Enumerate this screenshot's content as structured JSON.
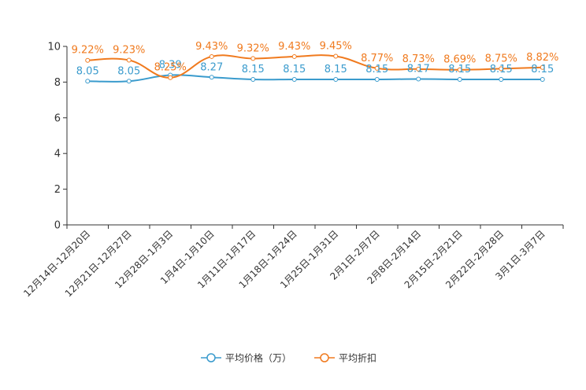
{
  "chart_data": {
    "type": "line",
    "title": "",
    "xlabel": "",
    "ylabel": "",
    "ylim": [
      0,
      10
    ],
    "yticks": [
      0,
      2,
      4,
      6,
      8,
      10
    ],
    "ytick_labels": [
      "0",
      "2",
      "4",
      "6",
      "8",
      "10"
    ],
    "grid": false,
    "legend_position": "bottom-center",
    "categories": [
      "12月14日-12月20日",
      "12月21日-12月27日",
      "12月28日-1月3日",
      "1月4日-1月10日",
      "1月11日-1月17日",
      "1月18日-1月24日",
      "1月25日-1月31日",
      "2月1日-2月7日",
      "2月8日-2月14日",
      "2月15日-2月21日",
      "2月22日-2月28日",
      "3月1日-3月7日"
    ],
    "series": [
      {
        "name": "平均价格（万）",
        "color": "#3a9bcd",
        "values": [
          8.05,
          8.05,
          8.39,
          8.27,
          8.15,
          8.15,
          8.15,
          8.15,
          8.17,
          8.15,
          8.15,
          8.15
        ],
        "labels": [
          "8.05",
          "8.05",
          "8.39",
          "8.27",
          "8.15",
          "8.15",
          "8.15",
          "8.15",
          "8.17",
          "8.15",
          "8.15",
          "8.15"
        ]
      },
      {
        "name": "平均折扣",
        "color": "#f07a1e",
        "values": [
          9.22,
          9.23,
          8.25,
          9.43,
          9.32,
          9.43,
          9.45,
          8.77,
          8.73,
          8.69,
          8.75,
          8.82
        ],
        "labels": [
          "9.22%",
          "9.23%",
          "8.25%",
          "9.43%",
          "9.32%",
          "9.43%",
          "9.45%",
          "8.77%",
          "8.73%",
          "8.69%",
          "8.75%",
          "8.82%"
        ]
      }
    ]
  }
}
